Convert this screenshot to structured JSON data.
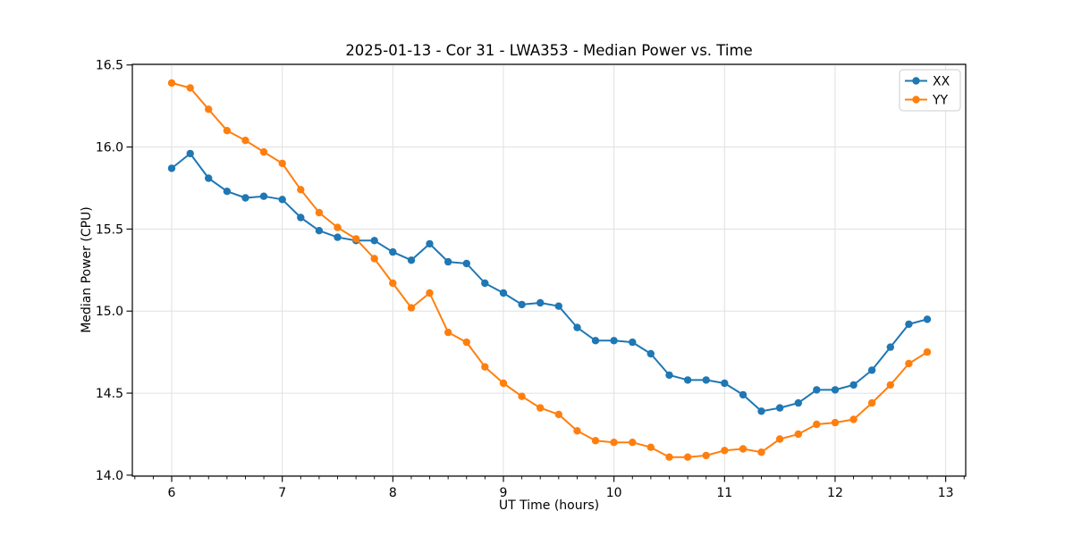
{
  "chart_data": {
    "type": "line",
    "title": "2025-01-13 - Cor 31 - LWA353 - Median Power vs. Time",
    "xlabel": "UT Time (hours)",
    "ylabel": "Median Power (CPU)",
    "x": [
      6.0,
      6.167,
      6.333,
      6.5,
      6.667,
      6.833,
      7.0,
      7.167,
      7.333,
      7.5,
      7.667,
      7.833,
      8.0,
      8.167,
      8.333,
      8.5,
      8.667,
      8.833,
      9.0,
      9.167,
      9.333,
      9.5,
      9.667,
      9.833,
      10.0,
      10.167,
      10.333,
      10.5,
      10.667,
      10.833,
      11.0,
      11.167,
      11.333,
      11.5,
      11.667,
      11.833,
      12.0,
      12.167,
      12.333,
      12.5,
      12.667,
      12.833
    ],
    "series": [
      {
        "name": "XX",
        "color": "#1f77b4",
        "values": [
          15.87,
          15.96,
          15.81,
          15.73,
          15.69,
          15.7,
          15.68,
          15.57,
          15.49,
          15.45,
          15.43,
          15.43,
          15.36,
          15.31,
          15.41,
          15.3,
          15.29,
          15.17,
          15.11,
          15.04,
          15.05,
          15.03,
          14.9,
          14.82,
          14.82,
          14.81,
          14.74,
          14.61,
          14.58,
          14.58,
          14.56,
          14.49,
          14.39,
          14.41,
          14.44,
          14.52,
          14.52,
          14.55,
          14.64,
          14.78,
          14.92,
          14.95
        ]
      },
      {
        "name": "YY",
        "color": "#ff7f0e",
        "values": [
          16.39,
          16.36,
          16.23,
          16.1,
          16.04,
          15.97,
          15.9,
          15.74,
          15.6,
          15.51,
          15.44,
          15.32,
          15.17,
          15.02,
          15.11,
          14.87,
          14.81,
          14.66,
          14.56,
          14.48,
          14.41,
          14.37,
          14.27,
          14.21,
          14.2,
          14.2,
          14.17,
          14.11,
          14.11,
          14.12,
          14.15,
          14.16,
          14.14,
          14.22,
          14.25,
          14.31,
          14.32,
          14.34,
          14.44,
          14.55,
          14.68,
          14.75
        ]
      }
    ],
    "x_ticks": [
      6,
      7,
      8,
      9,
      10,
      11,
      12,
      13
    ],
    "x_tick_labels": [
      "6",
      "7",
      "8",
      "9",
      "10",
      "11",
      "12",
      "13"
    ],
    "x_minor_tick_step": 0.166667,
    "y_ticks": [
      14.0,
      14.5,
      15.0,
      15.5,
      16.0,
      16.5
    ],
    "y_tick_labels": [
      "14.0",
      "14.5",
      "15.0",
      "15.5",
      "16.0",
      "16.5"
    ],
    "xlim": [
      5.644,
      13.181
    ],
    "ylim": [
      13.994,
      16.504
    ],
    "grid": true,
    "grid_color": "#e0e0e0",
    "axis_color": "#000000",
    "background": "#ffffff",
    "legend": {
      "position": "upper right",
      "labels": [
        "XX",
        "YY"
      ]
    }
  }
}
